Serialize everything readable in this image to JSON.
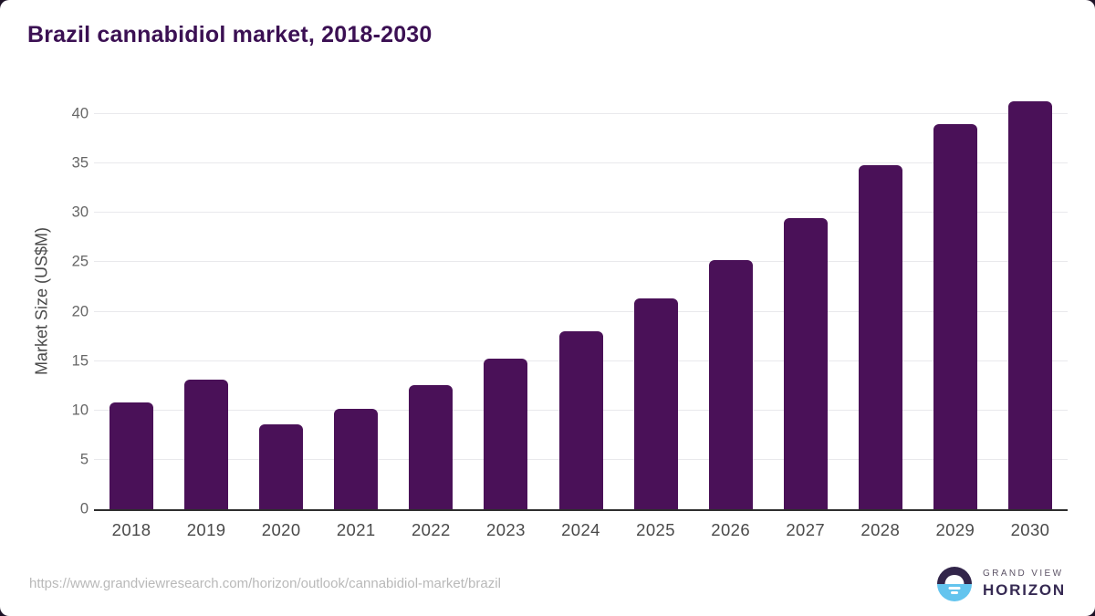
{
  "title": "Brazil cannabidiol market, 2018-2030",
  "chart_data": {
    "type": "bar",
    "title": "Brazil cannabidiol market, 2018-2030",
    "categories": [
      "2018",
      "2019",
      "2020",
      "2021",
      "2022",
      "2023",
      "2024",
      "2025",
      "2026",
      "2027",
      "2028",
      "2029",
      "2030"
    ],
    "values": [
      10.8,
      13.1,
      8.6,
      10.2,
      12.6,
      15.2,
      18.0,
      21.3,
      25.2,
      29.5,
      34.8,
      39.0,
      41.3
    ],
    "xlabel": "",
    "ylabel": "Market Size (US$M)",
    "yticks": [
      0,
      5,
      10,
      15,
      20,
      25,
      30,
      35,
      40
    ],
    "ylim": [
      0,
      41.85
    ],
    "grid": "horizontal",
    "legend": "none",
    "bar_color": "#4a1158"
  },
  "footer": {
    "source_url": "https://www.grandviewresearch.com/horizon/outlook/cannabidiol-market/brazil",
    "logo": {
      "line1": "GRAND VIEW",
      "line2": "HORIZON"
    }
  },
  "colors": {
    "title": "#3b1053",
    "bar": "#4a1158",
    "axis_line": "#2e2e2e",
    "gridline": "#e9e9ec",
    "y_tick_label": "#666666",
    "x_tick_label": "#4a4a4a",
    "source_text": "#b9b9b9",
    "logo_purple": "#32254a",
    "logo_blue": "#63c4ee",
    "card_background": "#ffffff"
  }
}
